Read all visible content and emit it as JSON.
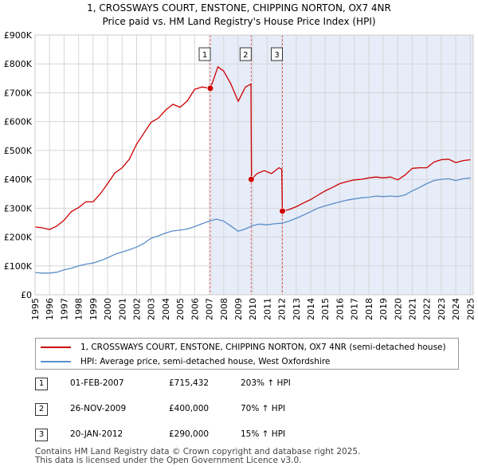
{
  "chart_data": {
    "type": "line",
    "title": "1, CROSSWAYS COURT, ENSTONE, CHIPPING NORTON, OX7 4NR",
    "subtitle": "Price paid vs. HM Land Registry's House Price Index (HPI)",
    "xlabel": "",
    "ylabel": "",
    "xlim": [
      1995,
      2025.2
    ],
    "ylim": [
      0,
      900000
    ],
    "yticks": [
      {
        "value": 0,
        "label": "£0"
      },
      {
        "value": 100000,
        "label": "£100K"
      },
      {
        "value": 200000,
        "label": "£200K"
      },
      {
        "value": 300000,
        "label": "£300K"
      },
      {
        "value": 400000,
        "label": "£400K"
      },
      {
        "value": 500000,
        "label": "£500K"
      },
      {
        "value": 600000,
        "label": "£600K"
      },
      {
        "value": 700000,
        "label": "£700K"
      },
      {
        "value": 800000,
        "label": "£800K"
      },
      {
        "value": 900000,
        "label": "£900K"
      }
    ],
    "xticks": [
      1995,
      1996,
      1997,
      1998,
      1999,
      2000,
      2001,
      2002,
      2003,
      2004,
      2005,
      2006,
      2007,
      2008,
      2009,
      2010,
      2011,
      2012,
      2013,
      2014,
      2015,
      2016,
      2017,
      2018,
      2019,
      2020,
      2021,
      2022,
      2023,
      2024,
      2025
    ],
    "grid": true,
    "shaded_region": [
      2007.08,
      2025.2
    ],
    "series": [
      {
        "name": "1, CROSSWAYS COURT, ENSTONE, CHIPPING NORTON, OX7 4NR (semi-detached house)",
        "color": "#cc0000",
        "x": [
          1995,
          1995.5,
          1996,
          1996.5,
          1997,
          1997.5,
          1998,
          1998.5,
          1999,
          1999.5,
          2000,
          2000.5,
          2001,
          2001.5,
          2002,
          2002.5,
          2003,
          2003.5,
          2004,
          2004.5,
          2005,
          2005.5,
          2006,
          2006.5,
          2007.08,
          2007.3,
          2007.6,
          2008,
          2008.5,
          2009,
          2009.5,
          2009.88,
          2009.92,
          2010.3,
          2010.8,
          2011.3,
          2011.8,
          2012.0,
          2012.05,
          2012.5,
          2013,
          2013.5,
          2014,
          2014.5,
          2015,
          2015.5,
          2016,
          2016.5,
          2017,
          2017.5,
          2018,
          2018.5,
          2019,
          2019.5,
          2020,
          2020.5,
          2021,
          2021.5,
          2022,
          2022.5,
          2023,
          2023.5,
          2024,
          2024.5,
          2025
        ],
        "y": [
          235000,
          232000,
          226000,
          238000,
          258000,
          288000,
          302000,
          322000,
          322000,
          350000,
          385000,
          422000,
          440000,
          470000,
          522000,
          560000,
          598000,
          612000,
          640000,
          660000,
          650000,
          672000,
          712000,
          720000,
          715432,
          745000,
          790000,
          775000,
          730000,
          670000,
          720000,
          730000,
          400000,
          420000,
          430000,
          420000,
          440000,
          435000,
          290000,
          295000,
          305000,
          318000,
          330000,
          345000,
          360000,
          372000,
          385000,
          392000,
          398000,
          400000,
          405000,
          408000,
          405000,
          408000,
          398000,
          415000,
          438000,
          440000,
          440000,
          460000,
          468000,
          470000,
          458000,
          465000,
          468000
        ]
      },
      {
        "name": "HPI: Average price, semi-detached house, West Oxfordshire",
        "color": "#5b8ec9",
        "x": [
          1995,
          1995.5,
          1996,
          1996.5,
          1997,
          1997.5,
          1998,
          1998.5,
          1999,
          1999.5,
          2000,
          2000.5,
          2001,
          2001.5,
          2002,
          2002.5,
          2003,
          2003.5,
          2004,
          2004.5,
          2005,
          2005.5,
          2006,
          2006.5,
          2007,
          2007.5,
          2008,
          2008.5,
          2009,
          2009.5,
          2010,
          2010.5,
          2011,
          2011.5,
          2012,
          2012.5,
          2013,
          2013.5,
          2014,
          2014.5,
          2015,
          2015.5,
          2016,
          2016.5,
          2017,
          2017.5,
          2018,
          2018.5,
          2019,
          2019.5,
          2020,
          2020.5,
          2021,
          2021.5,
          2022,
          2022.5,
          2023,
          2023.5,
          2024,
          2024.5,
          2025
        ],
        "y": [
          77000,
          75000,
          75000,
          78000,
          86000,
          92000,
          100000,
          106000,
          110000,
          118000,
          128000,
          140000,
          148000,
          156000,
          165000,
          178000,
          196000,
          204000,
          214000,
          221000,
          224000,
          228000,
          236000,
          246000,
          255000,
          262000,
          255000,
          238000,
          220000,
          228000,
          240000,
          245000,
          242000,
          246000,
          248000,
          255000,
          265000,
          276000,
          288000,
          300000,
          308000,
          315000,
          322000,
          328000,
          332000,
          336000,
          338000,
          342000,
          340000,
          342000,
          340000,
          346000,
          360000,
          372000,
          385000,
          396000,
          400000,
          402000,
          396000,
          402000,
          405000
        ]
      }
    ],
    "transactions": [
      {
        "num": "1",
        "x": 2007.08,
        "y": 715432,
        "date": "01-FEB-2007",
        "price": "£715,432",
        "hpi": "203% ↑ HPI"
      },
      {
        "num": "2",
        "x": 2009.9,
        "y": 400000,
        "date": "26-NOV-2009",
        "price": "£400,000",
        "hpi": "70% ↑ HPI"
      },
      {
        "num": "3",
        "x": 2012.05,
        "y": 290000,
        "date": "20-JAN-2012",
        "price": "£290,000",
        "hpi": "15% ↑ HPI"
      }
    ]
  },
  "footer": {
    "line1": "Contains HM Land Registry data © Crown copyright and database right 2025.",
    "line2": "This data is licensed under the Open Government Licence v3.0."
  }
}
